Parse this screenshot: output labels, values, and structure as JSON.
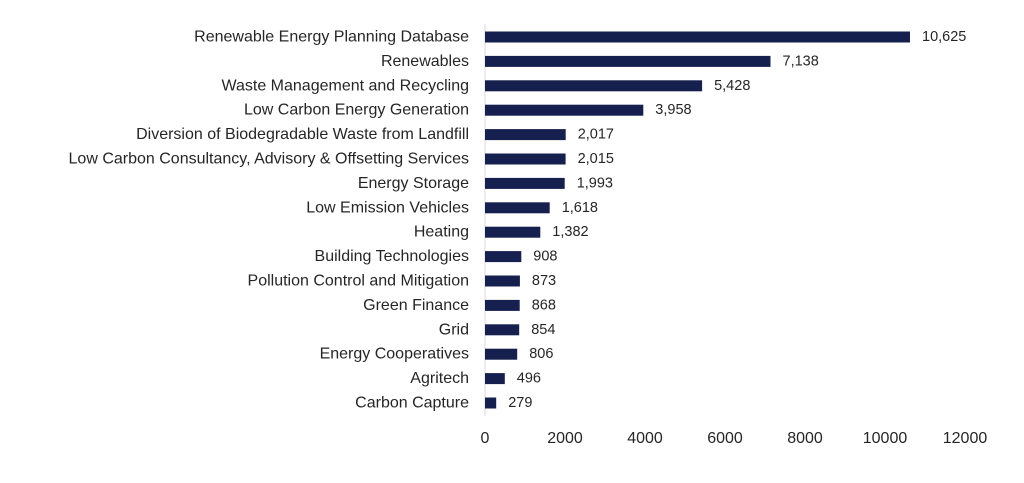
{
  "chart_data": {
    "type": "bar",
    "orientation": "horizontal",
    "title": "",
    "xlabel": "",
    "ylabel": "",
    "categories": [
      "Renewable Energy Planning Database",
      "Renewables",
      "Waste Management and Recycling",
      "Low Carbon Energy Generation",
      "Diversion of Biodegradable Waste from Landfill",
      "Low Carbon Consultancy, Advisory & Offsetting Services",
      "Energy Storage",
      "Low Emission Vehicles",
      "Heating",
      "Building Technologies",
      "Pollution Control and Mitigation",
      "Green Finance",
      "Grid",
      "Energy Cooperatives",
      "Agritech",
      "Carbon Capture"
    ],
    "values": [
      10625,
      7138,
      5428,
      3958,
      2017,
      2015,
      1993,
      1618,
      1382,
      908,
      873,
      868,
      854,
      806,
      496,
      279
    ],
    "value_labels": [
      "10,625",
      "7,138",
      "5,428",
      "3,958",
      "2,017",
      "2,015",
      "1,993",
      "1,618",
      "1,382",
      "908",
      "873",
      "868",
      "854",
      "806",
      "496",
      "279"
    ],
    "xlim": [
      0,
      12000
    ],
    "x_ticks": [
      "0",
      "2000",
      "4000",
      "6000",
      "8000",
      "10000",
      "12000"
    ],
    "grid": false,
    "legend": "none",
    "bar_color": "#15204f",
    "axis_color": "#d9d9d9"
  }
}
